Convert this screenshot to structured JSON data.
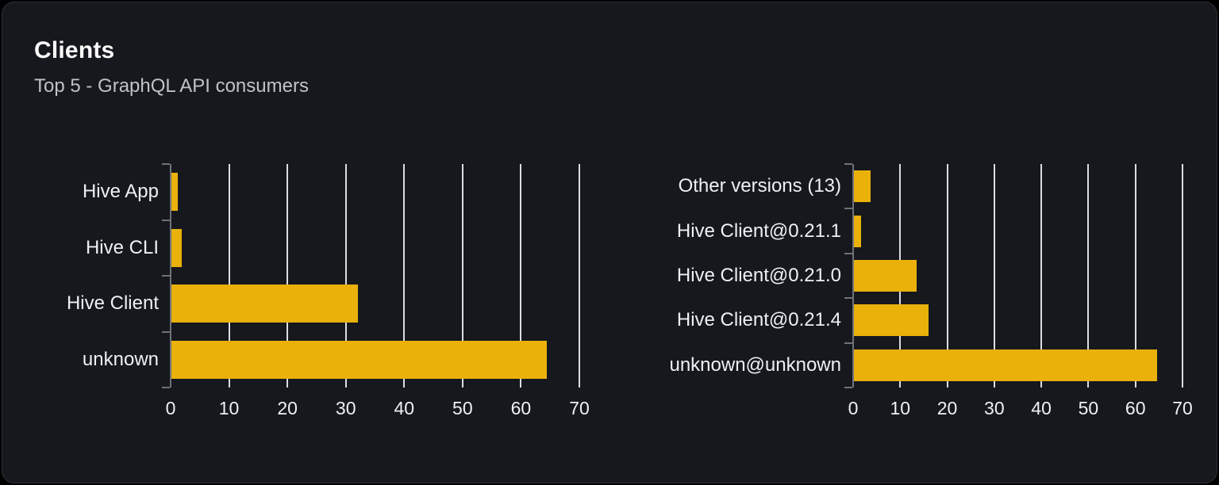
{
  "header": {
    "title": "Clients",
    "subtitle": "Top 5 - GraphQL API consumers"
  },
  "colors": {
    "page_bg": "#000000",
    "card_bg": "#16181d",
    "card_border": "#2b2f37",
    "bar": "#e9b10a",
    "grid": "#d9dde5",
    "axis": "#6e727a",
    "text": "#eef0f3",
    "title": "#fafafa",
    "subtitle": "#bfc3c9"
  },
  "chart_data": [
    {
      "type": "bar",
      "orientation": "horizontal",
      "name": "clients-top5",
      "categories": [
        "Hive App",
        "Hive CLI",
        "Hive Client",
        "unknown"
      ],
      "values": [
        1.2,
        1.9,
        32.1,
        64.4
      ],
      "xlim": [
        0,
        70
      ],
      "xticks": [
        0,
        10,
        20,
        30,
        40,
        50,
        60,
        70
      ],
      "grid": true,
      "legend": "none",
      "xlabel": "",
      "ylabel": ""
    },
    {
      "type": "bar",
      "orientation": "horizontal",
      "name": "client-versions-top5",
      "categories": [
        "Other versions (13)",
        "Hive Client@0.21.1",
        "Hive Client@0.21.0",
        "Hive Client@0.21.4",
        "unknown@unknown"
      ],
      "values": [
        3.7,
        1.7,
        13.5,
        16.1,
        64.6
      ],
      "xlim": [
        0,
        70
      ],
      "xticks": [
        0,
        10,
        20,
        30,
        40,
        50,
        60,
        70
      ],
      "grid": true,
      "legend": "none",
      "xlabel": "",
      "ylabel": ""
    }
  ]
}
